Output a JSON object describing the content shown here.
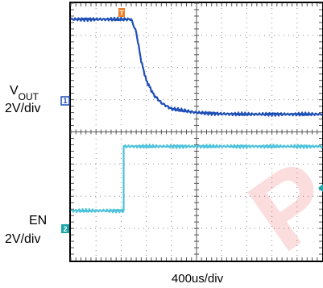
{
  "chart_data": {
    "type": "line",
    "title": "",
    "timebase_label": "400us/div",
    "grid": true,
    "divisions": {
      "x": 10,
      "y": 8
    },
    "trigger_marker": "T",
    "series": [
      {
        "label_main": "V",
        "label_sub": "OUT",
        "scale": "2V/div",
        "marker": "1",
        "color": "#1f4fb5",
        "note": "falls from high to low after enable",
        "t_div": [
          0,
          1.0,
          2.0,
          2.4,
          2.6,
          2.8,
          3.0,
          3.3,
          3.6,
          4.0,
          5.0,
          6.0,
          7.0,
          8.0,
          10.0
        ],
        "y_div": [
          3.5,
          3.5,
          3.5,
          3.5,
          3.1,
          2.2,
          1.6,
          1.15,
          0.9,
          0.72,
          0.6,
          0.56,
          0.55,
          0.55,
          0.55
        ]
      },
      {
        "label_main": "EN",
        "scale": "2V/div",
        "marker": "2",
        "color": "#4fc3d9",
        "t_div": [
          0,
          2.1,
          2.1,
          10.0
        ],
        "y_div": [
          -2.45,
          -2.45,
          -0.45,
          -0.45
        ]
      }
    ],
    "watermark_text": "P"
  }
}
